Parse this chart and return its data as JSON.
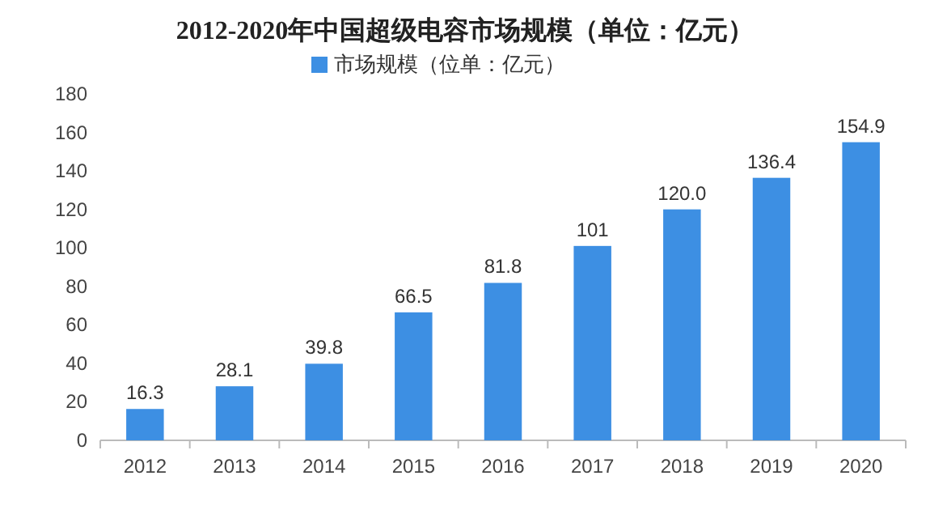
{
  "chart_data": {
    "type": "bar",
    "title": "2012-2020年中国超级电容市场规模（单位：亿元）",
    "categories": [
      "2012",
      "2013",
      "2014",
      "2015",
      "2016",
      "2017",
      "2018",
      "2019",
      "2020"
    ],
    "series": [
      {
        "name": "市场规模（位单：亿元）",
        "color": "#3d8fe3",
        "values": [
          16.3,
          28.1,
          39.8,
          66.5,
          81.8,
          101,
          120.0,
          136.4,
          154.9
        ],
        "value_labels": [
          "16.3",
          "28.1",
          "39.8",
          "66.5",
          "81.8",
          "101",
          "120.0",
          "136.4",
          "154.9"
        ]
      }
    ],
    "ylim": [
      0,
      180
    ],
    "yticks": [
      0,
      20,
      40,
      60,
      80,
      100,
      120,
      140,
      160,
      180
    ],
    "legend": "top",
    "grid": false
  }
}
